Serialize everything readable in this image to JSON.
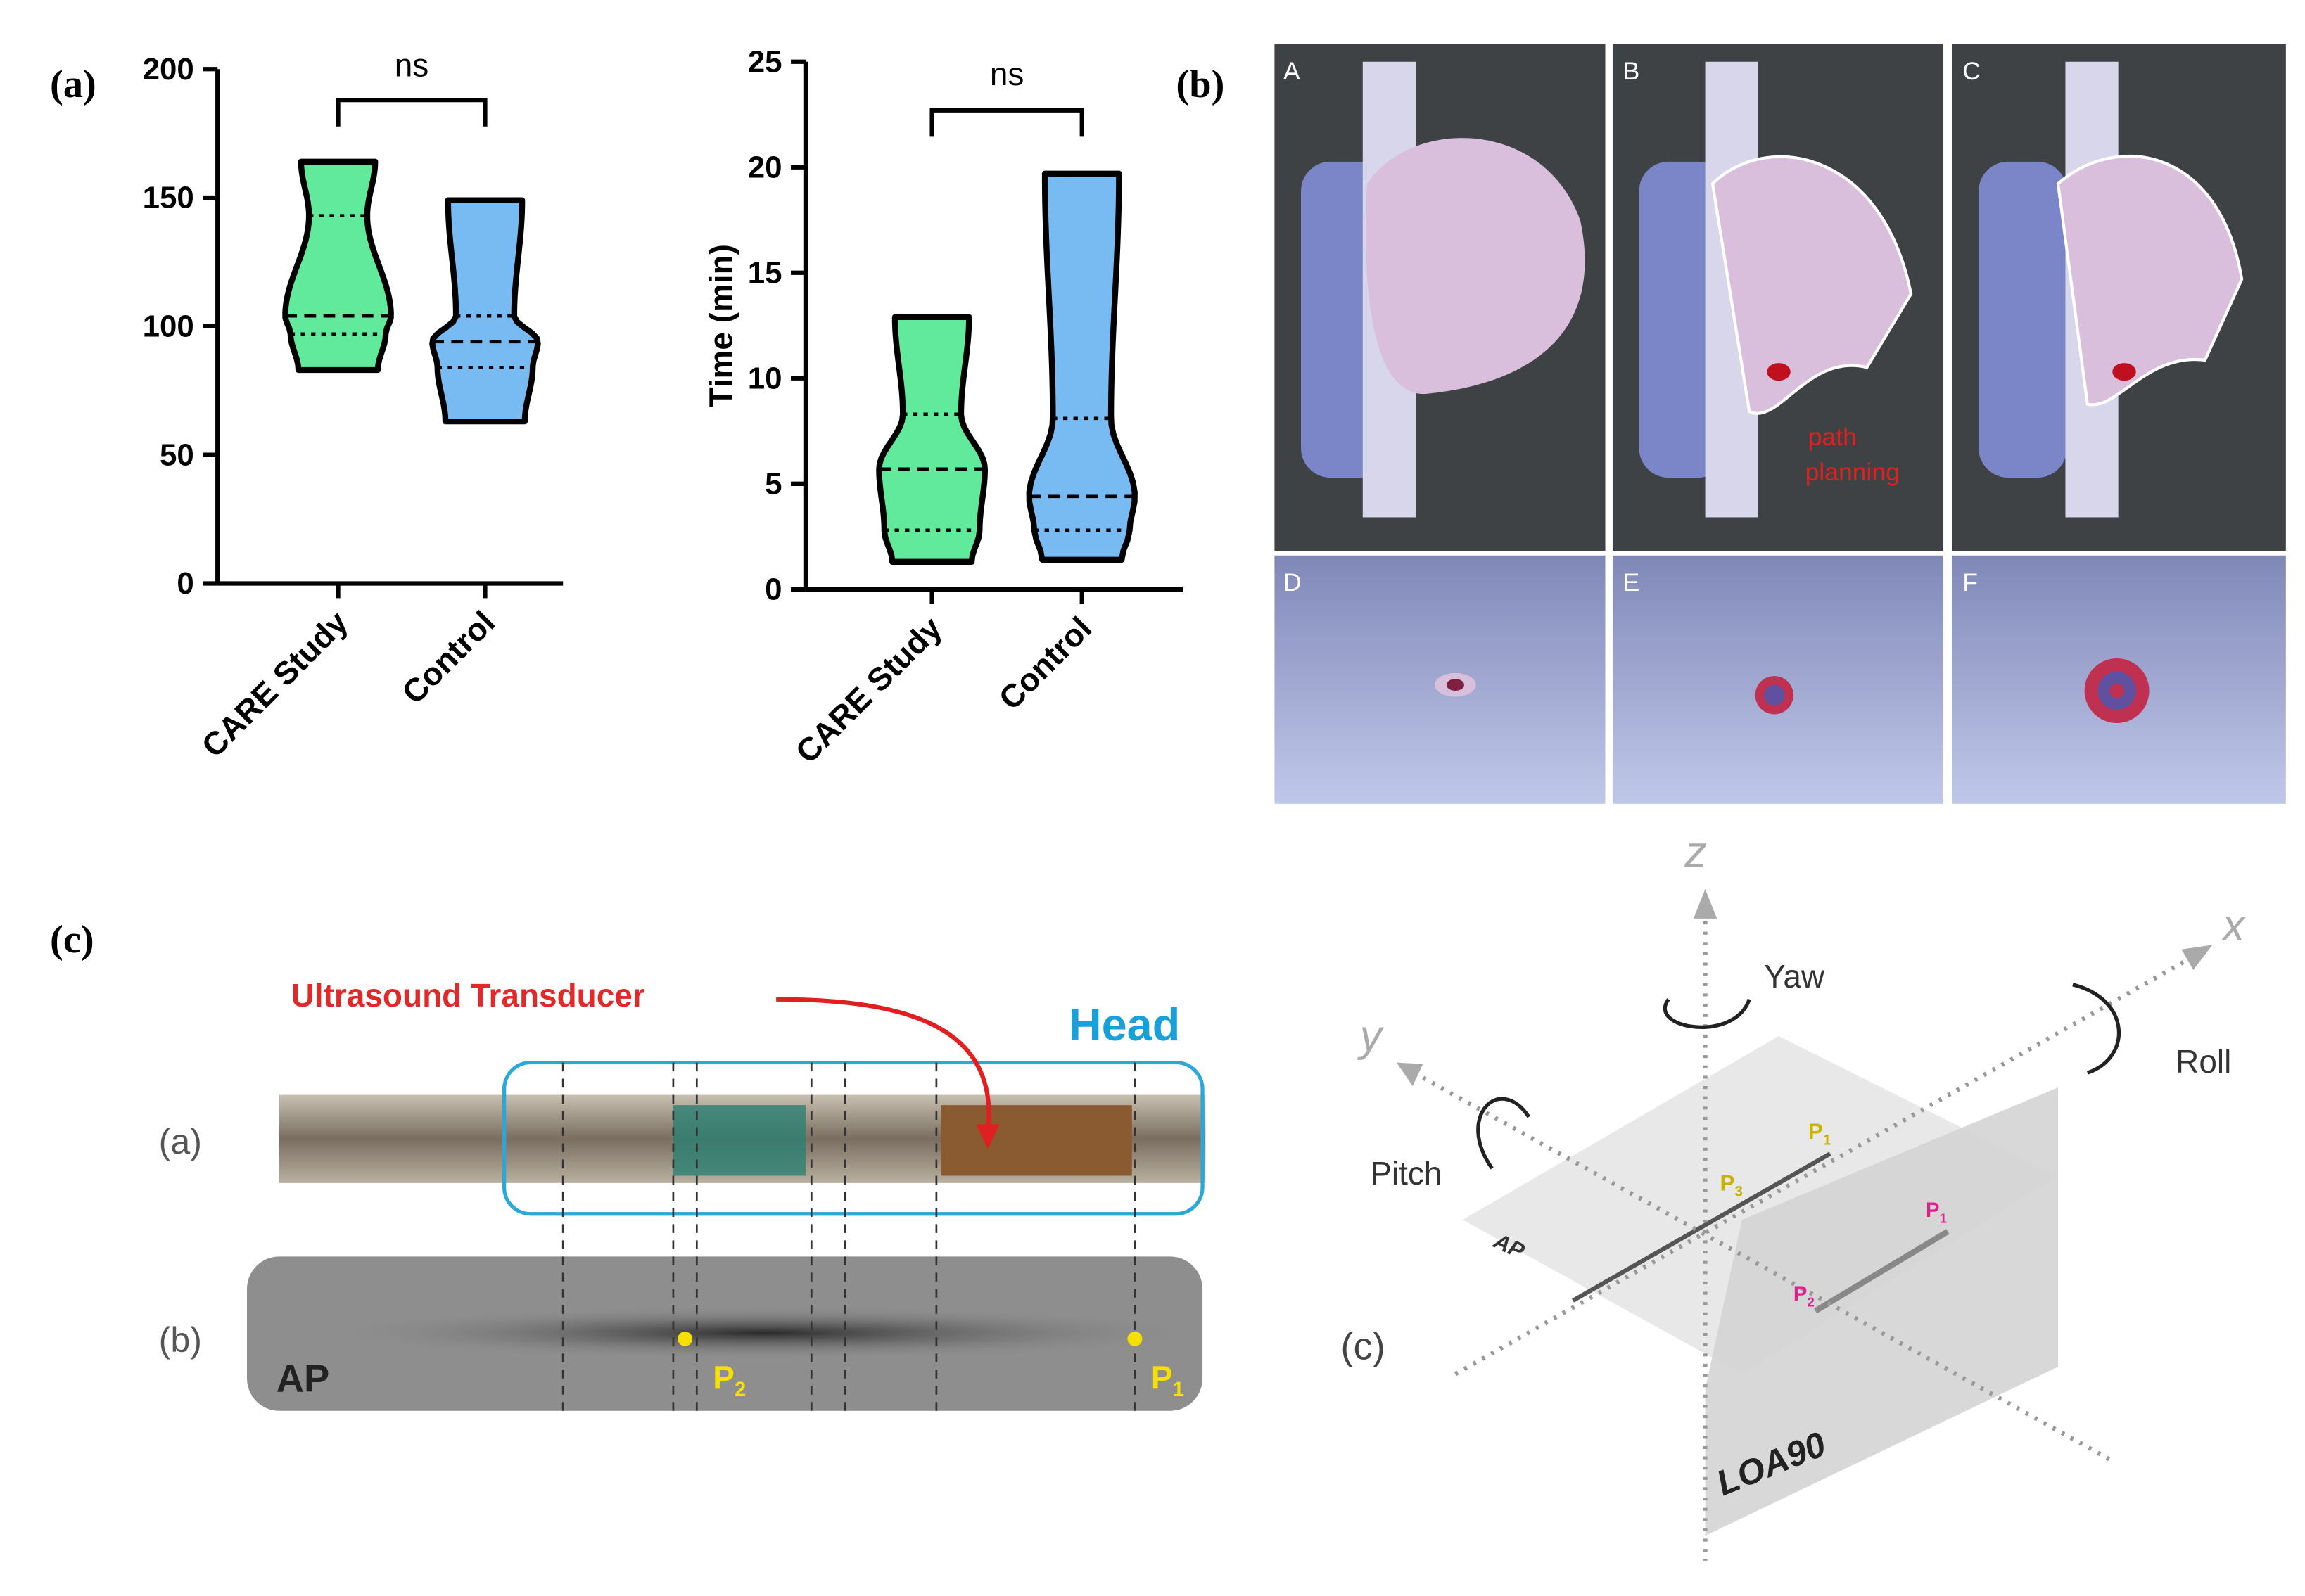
{
  "panel_labels": [
    "(a)",
    "(b)",
    "(c)"
  ],
  "chart_data": [
    {
      "type": "violin",
      "categories": [
        "CARE Study",
        "Control"
      ],
      "colors": [
        "#62ea9c",
        "#78baf2"
      ],
      "min": [
        83,
        63
      ],
      "q1": [
        97,
        84
      ],
      "median": [
        104,
        94
      ],
      "q3": [
        143,
        104
      ],
      "max": [
        164,
        149
      ],
      "ylim": [
        0,
        200
      ],
      "yticks": [
        0,
        50,
        100,
        150,
        200
      ],
      "annotation": "ns"
    },
    {
      "type": "violin",
      "ylabel": "Time (min)",
      "categories": [
        "CARE Study",
        "Control"
      ],
      "colors": [
        "#62ea9c",
        "#78baf2"
      ],
      "min": [
        1.3,
        1.4
      ],
      "q1": [
        2.8,
        2.8
      ],
      "median": [
        5.7,
        4.4
      ],
      "q3": [
        8.3,
        8.1
      ],
      "max": [
        12.9,
        19.7
      ],
      "ylim": [
        0,
        25
      ],
      "yticks": [
        0,
        5,
        10,
        15,
        20,
        25
      ],
      "annotation": "ns"
    }
  ],
  "panel_b": {
    "tiles": [
      "A",
      "B",
      "C",
      "D",
      "E",
      "F"
    ],
    "annotation": [
      "path",
      "planning"
    ]
  },
  "panel_c": {
    "transducer_label": "Ultrasound Transducer",
    "head_label": "Head",
    "row_labels": [
      "(a)",
      "(b)"
    ],
    "ap_label": "AP",
    "points": [
      {
        "base": "P",
        "sub": "2"
      },
      {
        "base": "P",
        "sub": "1"
      }
    ],
    "axes": [
      "z",
      "x",
      "y"
    ],
    "rotations": [
      "Yaw",
      "Roll",
      "Pitch"
    ],
    "subpanel": "(c)",
    "planes": [
      "AP",
      "LOA90"
    ],
    "plane_points": [
      {
        "base": "P",
        "sub": "1"
      },
      {
        "base": "P",
        "sub": "3"
      },
      {
        "base": "P",
        "sub": "1"
      },
      {
        "base": "P",
        "sub": "2"
      }
    ]
  }
}
